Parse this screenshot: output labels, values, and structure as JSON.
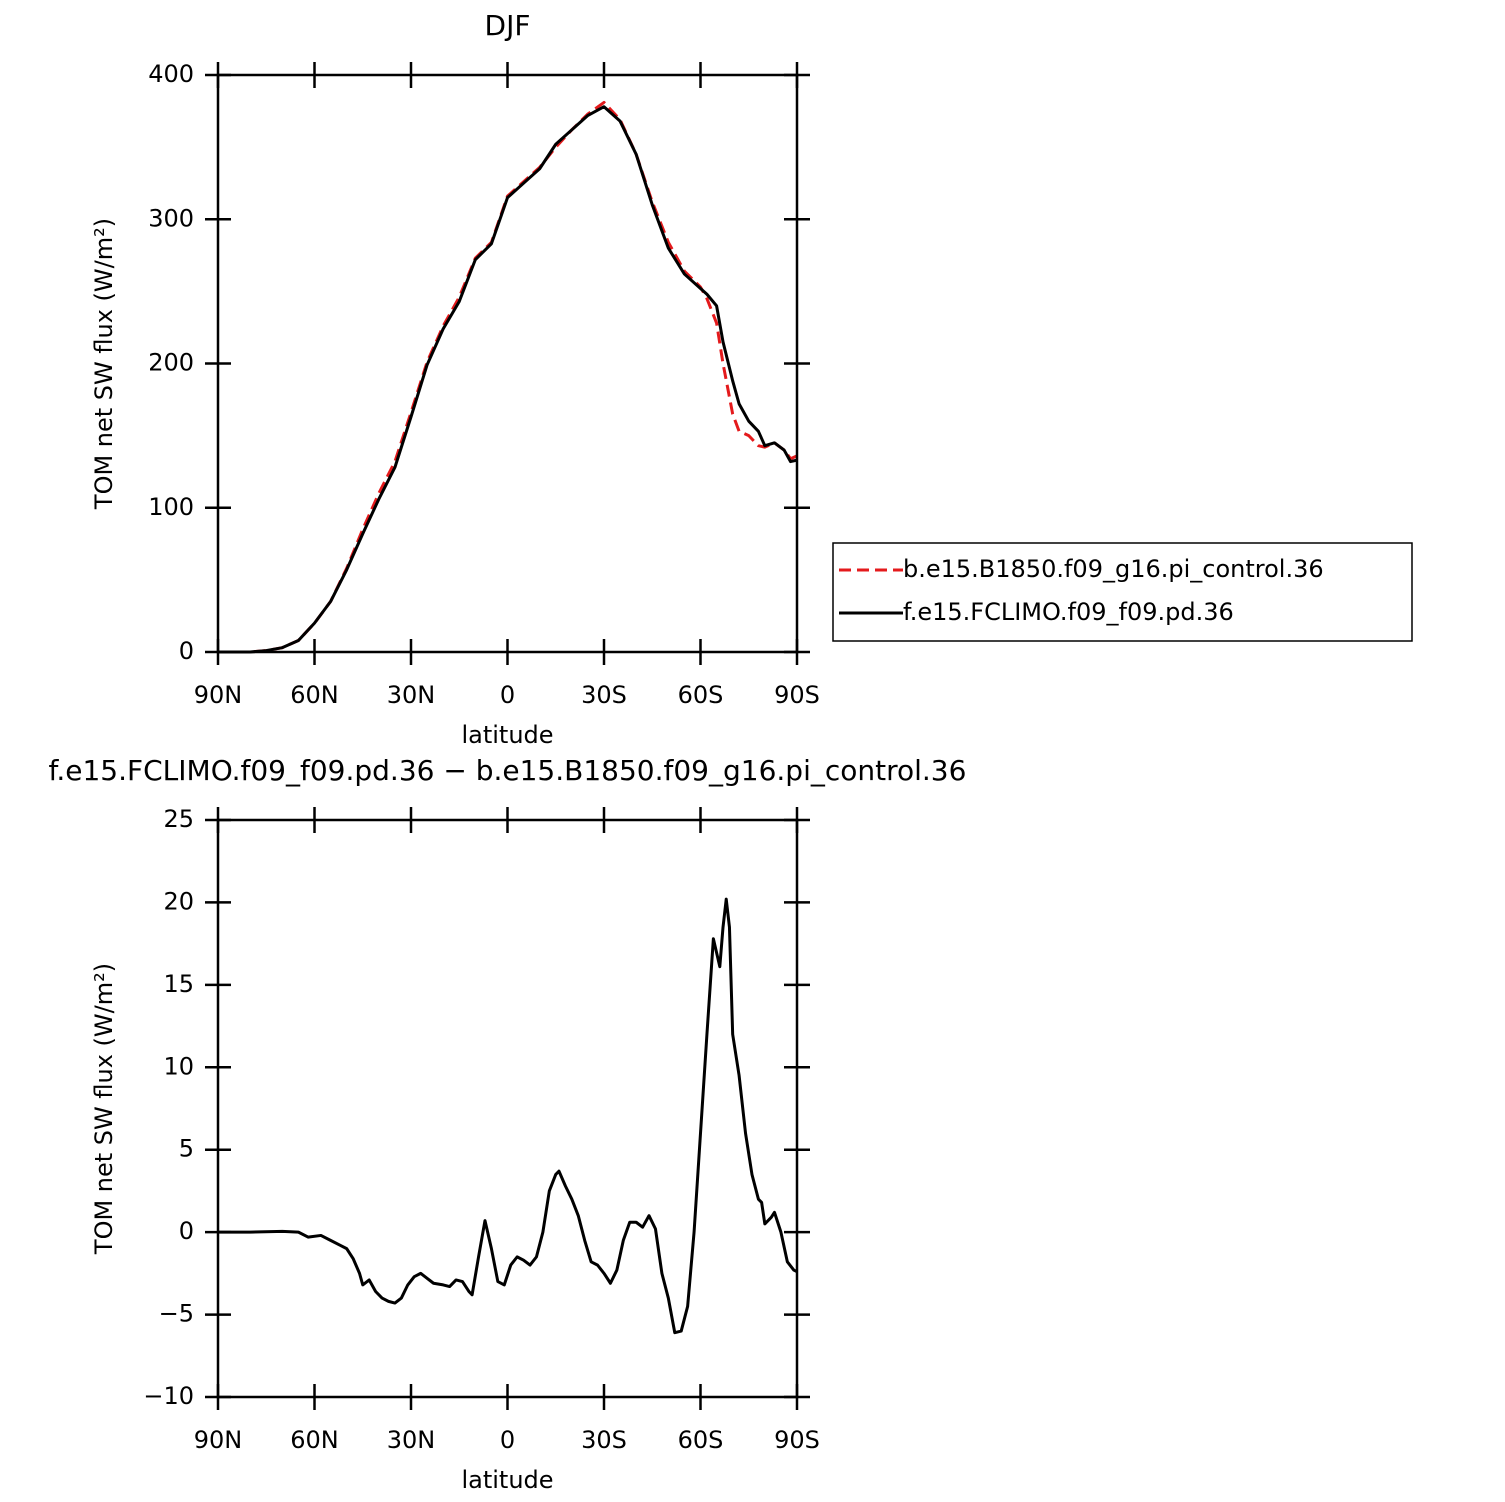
{
  "chart_data": [
    {
      "type": "line",
      "title": "DJF",
      "xlabel": "latitude",
      "ylabel": "TOM net SW flux (W/m²)",
      "x": [
        90,
        85,
        80,
        75,
        70,
        65,
        60,
        55,
        50,
        45,
        40,
        35,
        30,
        25,
        20,
        15,
        10,
        5,
        0,
        -5,
        -10,
        -15,
        -20,
        -25,
        -30,
        -35,
        -40,
        -45,
        -50,
        -55,
        -60,
        -62,
        -65,
        -67,
        -70,
        -72,
        -75,
        -78,
        -80,
        -83,
        -86,
        -88,
        -90
      ],
      "series": [
        {
          "name": "b.e15.B1850.f09_g16.pi_control.36",
          "color": "#e41a1c",
          "dash": true,
          "values": [
            0,
            0,
            0,
            1,
            3,
            8,
            20,
            35,
            58,
            85,
            110,
            132,
            166,
            201,
            226,
            246,
            273,
            284,
            316,
            326,
            336,
            350,
            362,
            373,
            381,
            369,
            345,
            312,
            284,
            264,
            253,
            245,
            228,
            200,
            165,
            153,
            150,
            143,
            142,
            145,
            140,
            134,
            136
          ]
        },
        {
          "name": "f.e15.FCLIMO.f09_f09.pd.36",
          "color": "#000000",
          "dash": false,
          "values": [
            0,
            0,
            0,
            1,
            3,
            8,
            20,
            35,
            57,
            82,
            106,
            128,
            163,
            199,
            224,
            243,
            272,
            283,
            315,
            325,
            335,
            352,
            362,
            372,
            378,
            368,
            345,
            310,
            280,
            262,
            252,
            248,
            240,
            215,
            188,
            172,
            160,
            153,
            143,
            145,
            140,
            132,
            133
          ]
        }
      ],
      "xlim": [
        90,
        -90
      ],
      "xticks": [
        {
          "value": 90,
          "label": "90N"
        },
        {
          "value": 60,
          "label": "60N"
        },
        {
          "value": 30,
          "label": "30N"
        },
        0,
        {
          "value": -30,
          "label": "30S"
        },
        {
          "value": -60,
          "label": "60S"
        },
        {
          "value": -90,
          "label": "90S"
        }
      ],
      "ylim": [
        0,
        400
      ],
      "yticks": [
        0,
        100,
        200,
        300,
        400
      ],
      "legend": "right"
    },
    {
      "type": "line",
      "title": "f.e15.FCLIMO.f09_f09.pd.36 − b.e15.B1850.f09_g16.pi_control.36",
      "xlabel": "latitude",
      "ylabel": "TOM net SW flux (W/m²)",
      "x": [
        90,
        80,
        70,
        65,
        62,
        58,
        55,
        52,
        50,
        48,
        46,
        45,
        43,
        41,
        39,
        37,
        35,
        33,
        31,
        29,
        27,
        25,
        23,
        20,
        18,
        16,
        14,
        12,
        11,
        9,
        7,
        5,
        3,
        1,
        -1,
        -3,
        -5,
        -7,
        -9,
        -11,
        -13,
        -15,
        -16,
        -18,
        -20,
        -22,
        -24,
        -26,
        -28,
        -30,
        -32,
        -34,
        -36,
        -38,
        -40,
        -42,
        -44,
        -46,
        -48,
        -50,
        -52,
        -54,
        -56,
        -58,
        -60,
        -62,
        -64,
        -66,
        -67,
        -68,
        -69,
        -70,
        -72,
        -74,
        -76,
        -78,
        -79,
        -80,
        -82,
        -83,
        -85,
        -87,
        -89,
        -90
      ],
      "values": [
        0,
        0,
        0.05,
        0,
        -0.3,
        -0.2,
        -0.5,
        -0.8,
        -1,
        -1.6,
        -2.5,
        -3.2,
        -2.9,
        -3.6,
        -4,
        -4.2,
        -4.3,
        -4,
        -3.2,
        -2.7,
        -2.5,
        -2.8,
        -3.1,
        -3.2,
        -3.3,
        -2.9,
        -3,
        -3.6,
        -3.8,
        -1.5,
        0.7,
        -1,
        -3,
        -3.2,
        -2,
        -1.5,
        -1.7,
        -2,
        -1.5,
        0,
        2.5,
        3.5,
        3.7,
        2.8,
        2,
        1,
        -0.5,
        -1.8,
        -2,
        -2.5,
        -3.1,
        -2.3,
        -0.5,
        0.6,
        0.6,
        0.3,
        1,
        0.2,
        -2.5,
        -4,
        -6.1,
        -6,
        -4.5,
        0,
        6,
        12,
        17.8,
        16.1,
        18.5,
        20.2,
        18.5,
        12,
        9.5,
        6,
        3.5,
        2,
        1.8,
        0.5,
        0.9,
        1.2,
        0,
        -1.8,
        -2.3,
        -2.4
      ],
      "color": "#000000",
      "xlim": [
        90,
        -90
      ],
      "xticks": [
        {
          "value": 90,
          "label": "90N"
        },
        {
          "value": 60,
          "label": "60N"
        },
        {
          "value": 30,
          "label": "30N"
        },
        0,
        {
          "value": -30,
          "label": "30S"
        },
        {
          "value": -60,
          "label": "60S"
        },
        {
          "value": -90,
          "label": "90S"
        }
      ],
      "ylim": [
        -10,
        25
      ],
      "yticks": [
        {
          "value": -10,
          "label": "−10"
        },
        {
          "value": -5,
          "label": "−5"
        },
        0,
        5,
        10,
        15,
        20,
        25
      ]
    }
  ]
}
